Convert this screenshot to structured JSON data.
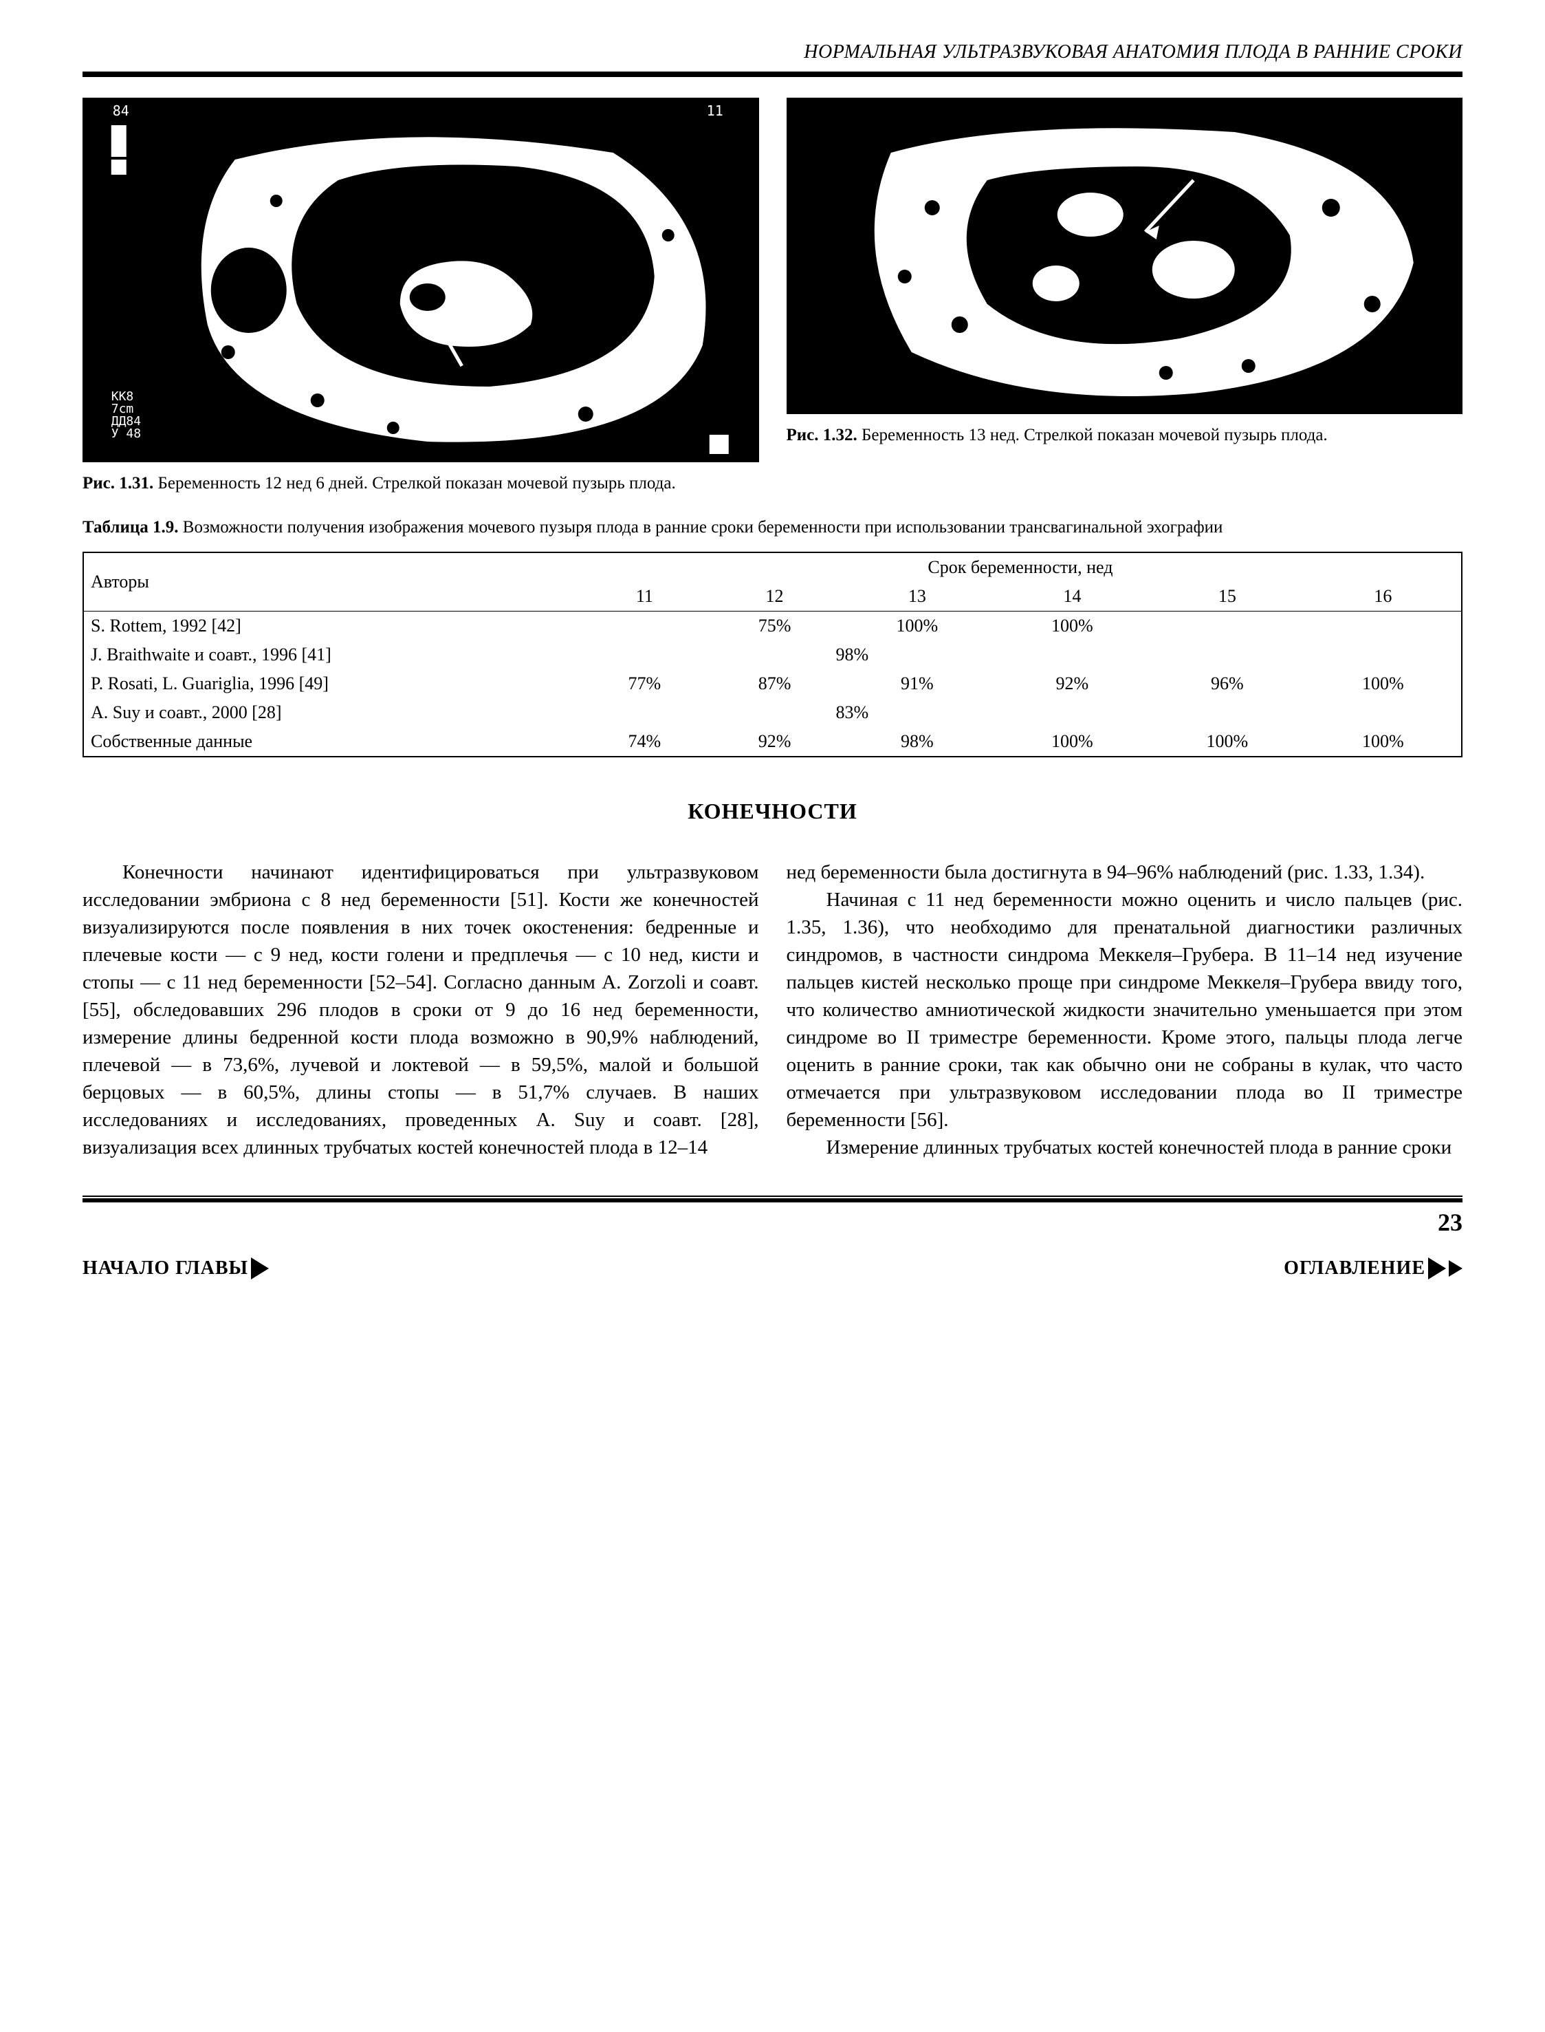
{
  "running_head": "НОРМАЛЬНАЯ УЛЬТРАЗВУКОВАЯ АНАТОМИЯ ПЛОДА В РАННИЕ СРОКИ",
  "figures": {
    "left": {
      "label": "Рис. 1.31.",
      "text": "Беременность 12 нед 6 дней. Стрелкой показан мочевой пузырь плода."
    },
    "right": {
      "label": "Рис. 1.32.",
      "text": "Беременность 13 нед. Стрелкой показан мочевой пузырь плода."
    }
  },
  "table": {
    "label": "Таблица 1.9.",
    "title": "Возможности получения изображения мочевого пузыря плода в ранние сроки беременности при использовании трансвагинальной эхографии",
    "header_authors": "Авторы",
    "header_span": "Срок беременности, нед",
    "weeks": [
      "11",
      "12",
      "13",
      "14",
      "15",
      "16"
    ],
    "rows": [
      {
        "author": "S. Rottem, 1992 [42]",
        "vals": [
          "",
          "75%",
          "100%",
          "100%",
          "",
          ""
        ]
      },
      {
        "author": "J. Braithwaite и соавт., 1996 [41]",
        "vals": [
          "",
          "",
          "98%",
          "",
          "",
          ""
        ],
        "shift12_13": true
      },
      {
        "author": "P. Rosati, L. Guariglia, 1996 [49]",
        "vals": [
          "77%",
          "87%",
          "91%",
          "92%",
          "96%",
          "100%"
        ]
      },
      {
        "author": "A. Suy и соавт., 2000 [28]",
        "vals": [
          "",
          "",
          "83%",
          "",
          "",
          ""
        ],
        "shift12_13": true
      },
      {
        "author": "Собственные данные",
        "vals": [
          "74%",
          "92%",
          "98%",
          "100%",
          "100%",
          "100%"
        ]
      }
    ]
  },
  "section_title": "КОНЕЧНОСТИ",
  "body": {
    "p1": "Конечности начинают идентифицироваться при ультразвуковом исследовании эмбриона с 8 нед беременности [51]. Кости же конечностей визуализируются после появления в них точек окостенения: бедренные и плечевые кости — с 9 нед, кости голени и предплечья — с 10 нед, кисти и стопы — с 11 нед беременности [52–54]. Согласно данным A. Zorzoli и соавт. [55], обследовавших 296 плодов в сроки от 9 до 16 нед беременности, измерение длины бедренной кости плода возможно в 90,9% наблюдений, плечевой — в 73,6%, лучевой и локтевой — в 59,5%, малой и большой берцовых — в 60,5%, длины стопы — в 51,7% случаев. В наших исследованиях и исследованиях, проведенных A. Suy и соавт. [28], визуализация всех длинных трубчатых костей конечностей плода в 12–14",
    "p2": "нед беременности была достигнута в 94–96% наблюдений (рис. 1.33, 1.34).",
    "p3": "Начиная с 11 нед беременности можно оценить и число пальцев (рис. 1.35, 1.36), что необходимо для пренатальной диагностики различных синдромов, в частности синдрома Меккеля–Грубера. В 11–14 нед изучение пальцев кистей несколько проще при синдроме Меккеля–Грубера ввиду того, что количество амниотической жидкости значительно уменьшается при этом синдроме во II триместре беременности. Кроме этого, пальцы плода легче оценить в ранние сроки, так как обычно они не собраны в кулак, что часто отмечается при ультразвуковом исследовании плода во II триместре беременности [56].",
    "p4": "Измерение длинных трубчатых костей конечностей плода в ранние сроки"
  },
  "page_number": "23",
  "nav": {
    "chapter": "НАЧАЛО ГЛАВЫ",
    "toc": "ОГЛАВЛЕНИЕ"
  },
  "colors": {
    "text": "#000000",
    "bg": "#ffffff"
  }
}
